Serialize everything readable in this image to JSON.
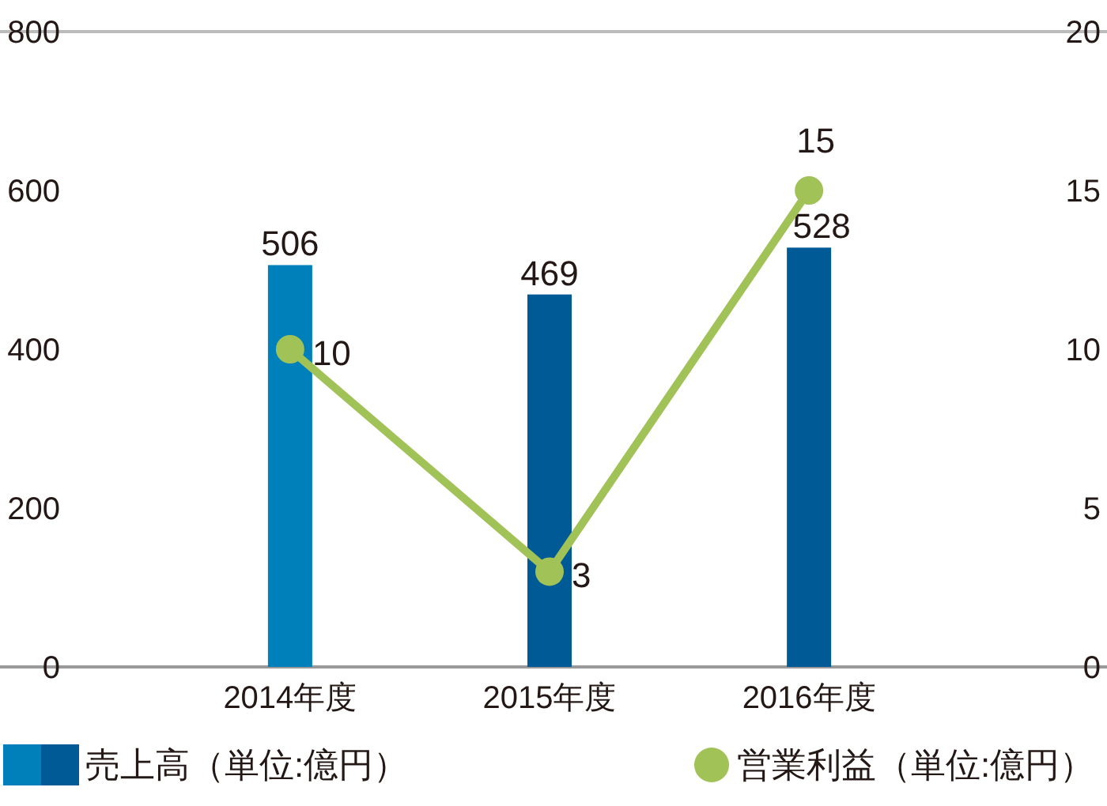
{
  "chart_data": {
    "type": "bar",
    "categories": [
      "2014年度",
      "2015年度",
      "2016年度"
    ],
    "series": [
      {
        "name": "売上高（単位:億円）",
        "colors": [
          "#0080bb",
          "#005a96",
          "#005a96"
        ],
        "values": [
          506,
          469,
          528
        ]
      },
      {
        "name": "営業利益（単位:億円）",
        "type": "line",
        "axis": "y2",
        "color": "#a0c257",
        "marker": "circle",
        "values": [
          10,
          3,
          15
        ]
      }
    ],
    "ylim": [
      0,
      800
    ],
    "yticks": [
      0,
      200,
      400,
      600,
      800
    ],
    "y2lim": [
      0,
      20
    ],
    "y2ticks": [
      0,
      5,
      10,
      15,
      20
    ],
    "data_labels": true,
    "legend": "bottom"
  }
}
